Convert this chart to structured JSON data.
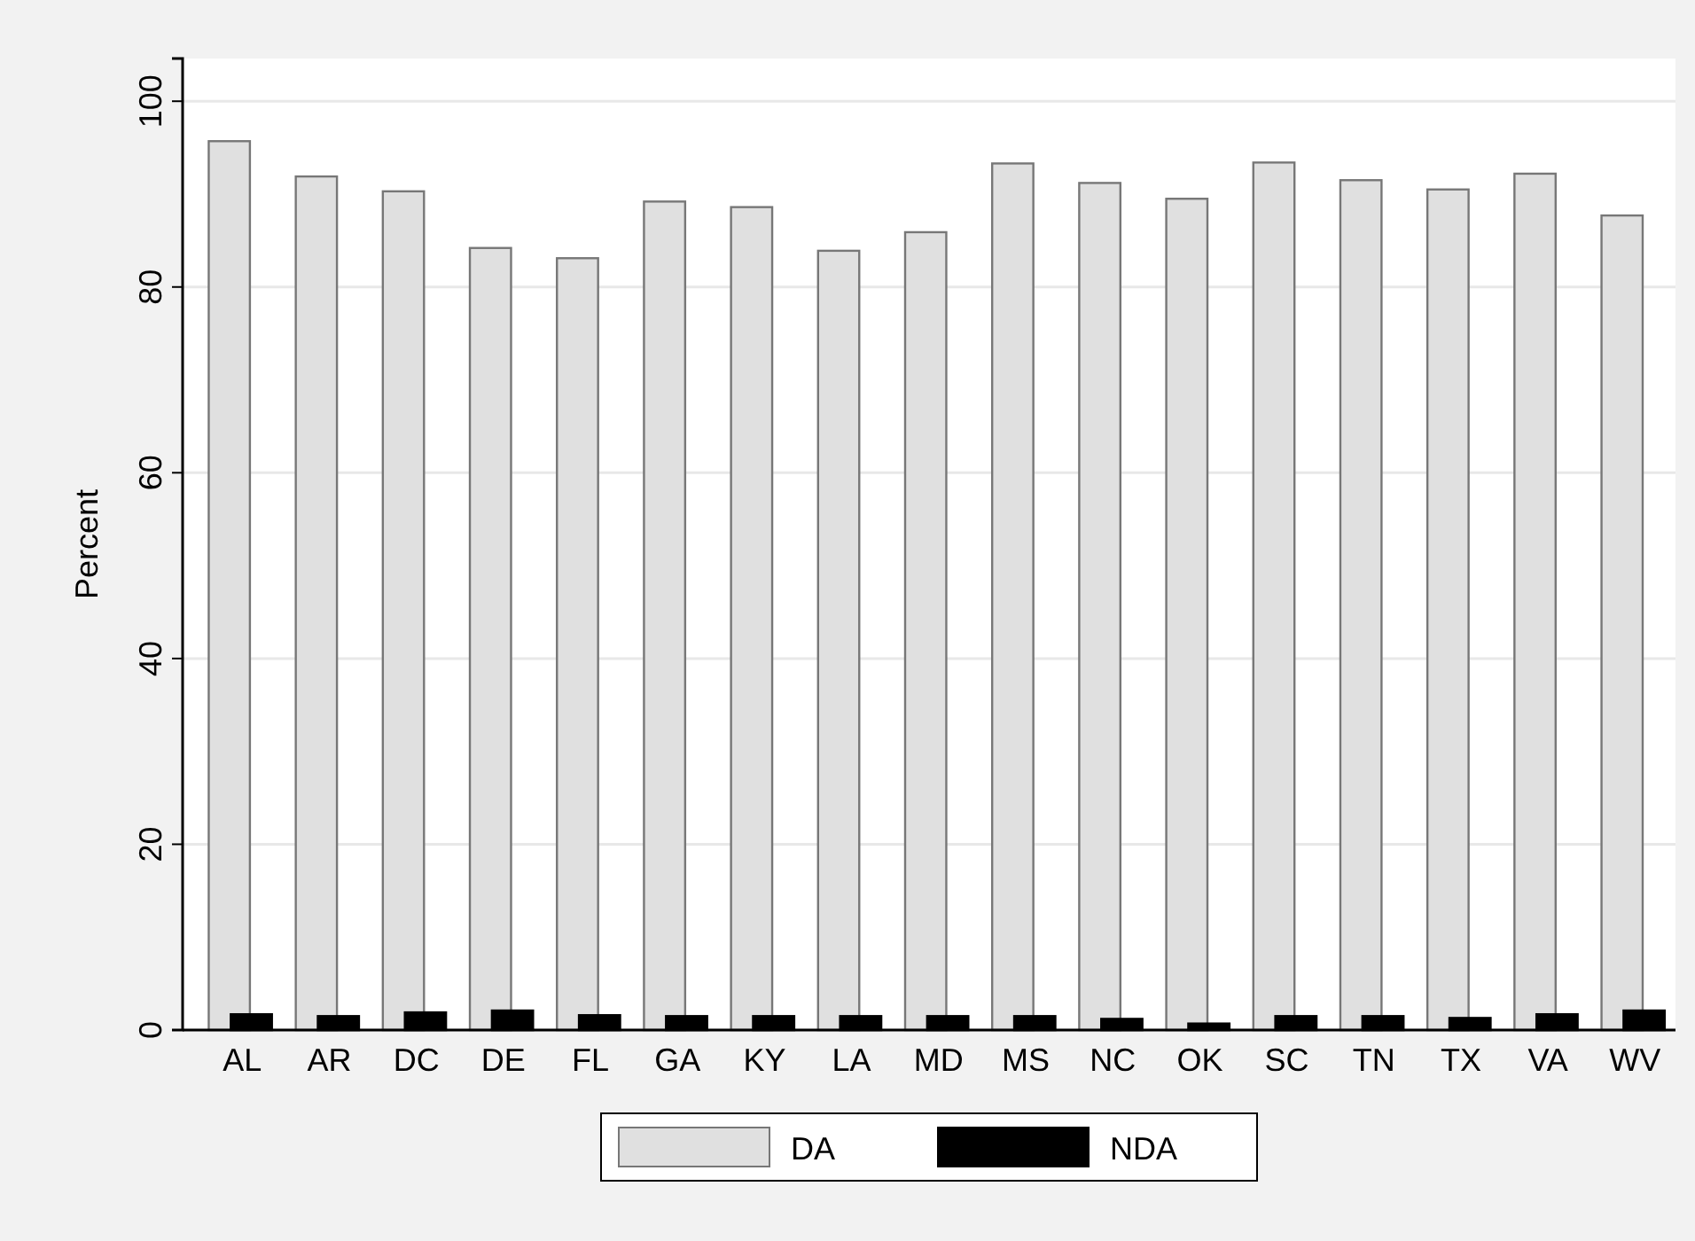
{
  "chart_data": {
    "type": "bar",
    "ylabel": "Percent",
    "categories": [
      "AL",
      "AR",
      "DC",
      "DE",
      "FL",
      "GA",
      "KY",
      "LA",
      "MD",
      "MS",
      "NC",
      "OK",
      "SC",
      "TN",
      "TX",
      "VA",
      "WV"
    ],
    "series": [
      {
        "name": "DA",
        "color": "#e0e0e0",
        "values": [
          95.7,
          91.9,
          90.3,
          84.2,
          83.1,
          89.2,
          88.6,
          83.9,
          85.9,
          93.3,
          91.2,
          89.5,
          93.4,
          91.5,
          90.5,
          92.2,
          87.7
        ]
      },
      {
        "name": "NDA",
        "color": "#000000",
        "values": [
          1.7,
          1.5,
          1.9,
          2.1,
          1.6,
          1.5,
          1.5,
          1.5,
          1.5,
          1.5,
          1.2,
          0.7,
          1.5,
          1.5,
          1.3,
          1.7,
          2.1
        ]
      }
    ],
    "ylim": [
      0,
      104.6
    ],
    "yticks": [
      0,
      20,
      40,
      60,
      80,
      100
    ],
    "grid": "y",
    "legend": "bottom"
  }
}
